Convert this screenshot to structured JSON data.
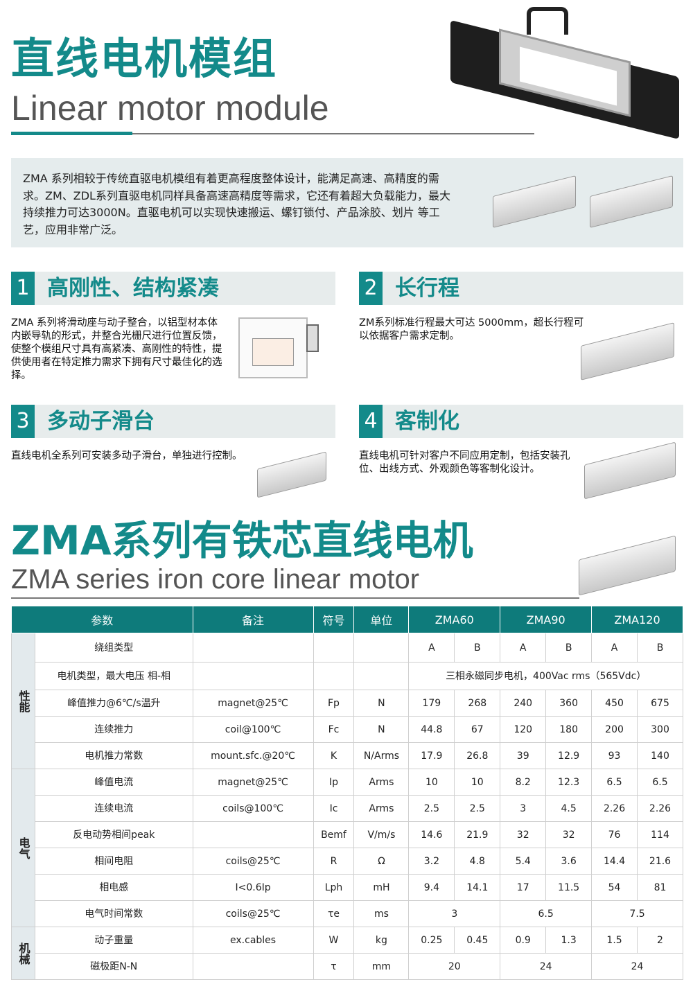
{
  "header": {
    "title_cn": "直线电机模组",
    "title_en": "Linear motor module"
  },
  "intro": {
    "text": "ZMA  系列相较于传统直驱电机模组有着更高程度整体设计，能满足高速、高精度的需求。ZM、ZDL系列直驱电机同样具备高速高精度等需求，它还有着超大负载能力，最大持续推力可达3000N。直驱电机可以实现快速搬运、螺钉锁付、产品涂胶、划片 等工艺，应用非常广泛。"
  },
  "features": [
    {
      "num": "1",
      "title": "高刚性、结构紧凑",
      "text": "ZMA 系列将滑动座与动子整合，以铝型材本体内嵌导轨的形式，并整合光栅尺进行位置反馈，使整个模组尺寸具有高紧凑、高刚性的特性，提供使用者在特定推力需求下拥有尺寸最佳化的选择。"
    },
    {
      "num": "2",
      "title": "长行程",
      "text": "ZM系列标准行程最大可达 5000mm，超长行程可以依据客户需求定制。"
    },
    {
      "num": "3",
      "title": "多动子滑台",
      "text": "直线电机全系列可安装多动子滑台，单独进行控制。"
    },
    {
      "num": "4",
      "title": "客制化",
      "text": "直线电机可针对客户不同应用定制，包括安装孔位、出线方式、外观颜色等客制化设计。"
    }
  ],
  "series": {
    "title_cn": "ZMA系列有铁芯直线电机",
    "title_en": "ZMA series iron core linear motor"
  },
  "table": {
    "headers": [
      "参数",
      "备注",
      "符号",
      "单位",
      "ZMA60",
      "ZMA90",
      "ZMA120"
    ],
    "groups": [
      {
        "label": "性能",
        "rows": 5
      },
      {
        "label": "电气",
        "rows": 6
      },
      {
        "label": "机械",
        "rows": 2
      }
    ],
    "rows": [
      {
        "param": "绕组类型",
        "note": "",
        "symbol": "",
        "unit": "",
        "values": [
          "A",
          "B",
          "A",
          "B",
          "A",
          "B"
        ]
      },
      {
        "param": "电机类型，最大电压 相-相",
        "note": "",
        "symbol": "",
        "unit": "",
        "span_value": "三相永磁同步电机，400Vac rms（565Vdc）"
      },
      {
        "param": "峰值推力@6℃/s温升",
        "note": "magnet@25℃",
        "symbol": "Fp",
        "unit": "N",
        "values": [
          "179",
          "268",
          "240",
          "360",
          "450",
          "675"
        ]
      },
      {
        "param": "连续推力",
        "note": "coil@100℃",
        "symbol": "Fc",
        "unit": "N",
        "values": [
          "44.8",
          "67",
          "120",
          "180",
          "200",
          "300"
        ]
      },
      {
        "param": "电机推力常数",
        "note": "mount.sfc.@20℃",
        "symbol": "K",
        "unit": "N/Arms",
        "values": [
          "17.9",
          "26.8",
          "39",
          "12.9",
          "93",
          "140"
        ]
      },
      {
        "param": "峰值电流",
        "note": "magnet@25℃",
        "symbol": "Ip",
        "unit": "Arms",
        "values": [
          "10",
          "10",
          "8.2",
          "12.3",
          "6.5",
          "6.5"
        ]
      },
      {
        "param": "连续电流",
        "note": "coils@100℃",
        "symbol": "Ic",
        "unit": "Arms",
        "values": [
          "2.5",
          "2.5",
          "3",
          "4.5",
          "2.26",
          "2.26"
        ]
      },
      {
        "param": "反电动势相间peak",
        "note": "",
        "symbol": "Bemf",
        "unit": "V/m/s",
        "values": [
          "14.6",
          "21.9",
          "32",
          "32",
          "76",
          "114"
        ]
      },
      {
        "param": "相间电阻",
        "note": "coils@25℃",
        "symbol": "R",
        "unit": "Ω",
        "values": [
          "3.2",
          "4.8",
          "5.4",
          "3.6",
          "14.4",
          "21.6"
        ]
      },
      {
        "param": "相电感",
        "note": "I<0.6Ip",
        "symbol": "Lph",
        "unit": "mH",
        "values": [
          "9.4",
          "14.1",
          "17",
          "11.5",
          "54",
          "81"
        ]
      },
      {
        "param": "电气时间常数",
        "note": "coils@25℃",
        "symbol": "τe",
        "unit": "ms",
        "pair_values": [
          "3",
          "6.5",
          "7.5"
        ]
      },
      {
        "param": "动子重量",
        "note": "ex.cables",
        "symbol": "W",
        "unit": "kg",
        "values": [
          "0.25",
          "0.45",
          "0.9",
          "1.3",
          "1.5",
          "2"
        ]
      },
      {
        "param": "磁极距N-N",
        "note": "",
        "symbol": "τ",
        "unit": "mm",
        "pair_values": [
          "20",
          "24",
          "24"
        ]
      }
    ]
  },
  "colors": {
    "brand": "#138a8a",
    "table_header": "#0e7b7b",
    "intro_bg": "#e5eced"
  }
}
